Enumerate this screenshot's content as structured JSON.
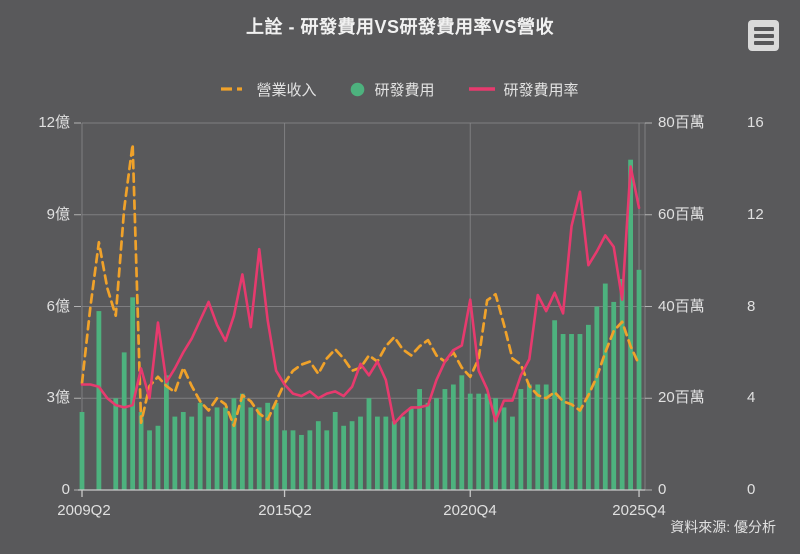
{
  "header": {
    "title": "上詮 - 研發費用VS研發費用率VS營收"
  },
  "legend": [
    {
      "label": "營業收入",
      "marker": "dashed-line",
      "color": "#F0A22A"
    },
    {
      "label": "研發費用",
      "marker": "circle",
      "color": "#4DB27E"
    },
    {
      "label": "研發費用率",
      "marker": "solid-line",
      "color": "#E73A6E"
    }
  ],
  "footer": {
    "source": "資料來源: 優分析"
  },
  "colors": {
    "background": "#59595B",
    "text": "#E3E3E3",
    "grid": "#8B8B8D",
    "axis_line": "#C9C9C9",
    "revenue": "#F0A22A",
    "rnd": "#4DB27E",
    "rate": "#E73A6E",
    "menu_button_bg": "#D9D9D9"
  },
  "chart_data": {
    "type": "combo (bar + 2 lines), quarterly",
    "title": "上詮 - 研發費用VS研發費用率VS營收",
    "x_tick_labels": [
      "2009Q2",
      "2015Q2",
      "2020Q4",
      "2025Q4"
    ],
    "x_tick_indices": [
      0,
      24,
      46,
      66
    ],
    "categories": [
      "2009Q2",
      "2009Q3",
      "2009Q4",
      "2010Q1",
      "2010Q2",
      "2010Q3",
      "2010Q4",
      "2011Q1",
      "2011Q2",
      "2011Q3",
      "2011Q4",
      "2012Q1",
      "2012Q2",
      "2012Q3",
      "2012Q4",
      "2013Q1",
      "2013Q2",
      "2013Q3",
      "2013Q4",
      "2014Q1",
      "2014Q2",
      "2014Q3",
      "2014Q4",
      "2015Q1",
      "2015Q2",
      "2015Q3",
      "2015Q4",
      "2016Q1",
      "2016Q2",
      "2016Q3",
      "2016Q4",
      "2017Q1",
      "2017Q2",
      "2017Q3",
      "2017Q4",
      "2018Q1",
      "2018Q2",
      "2018Q3",
      "2018Q4",
      "2019Q1",
      "2019Q2",
      "2019Q3",
      "2019Q4",
      "2020Q1",
      "2020Q2",
      "2020Q3",
      "2020Q4",
      "2021Q1",
      "2021Q2",
      "2021Q3",
      "2021Q4",
      "2022Q1",
      "2022Q2",
      "2022Q3",
      "2022Q4",
      "2023Q1",
      "2023Q2",
      "2023Q3",
      "2023Q4",
      "2024Q1",
      "2024Q2",
      "2024Q3",
      "2024Q4",
      "2025Q1",
      "2025Q2",
      "2025Q3",
      "2025Q4"
    ],
    "series": [
      {
        "name": "營業收入",
        "type": "line",
        "style": "dashed",
        "axis": "left",
        "unit": "億",
        "values": [
          3.5,
          6.0,
          8.1,
          6.6,
          5.7,
          9.2,
          11.3,
          2.2,
          3.4,
          3.7,
          3.4,
          3.2,
          4.0,
          3.4,
          2.9,
          2.6,
          3.0,
          2.8,
          2.1,
          3.1,
          2.9,
          2.5,
          2.3,
          2.9,
          3.5,
          3.9,
          4.1,
          4.2,
          3.8,
          4.3,
          4.6,
          4.3,
          3.9,
          4.0,
          4.4,
          4.2,
          4.7,
          5.0,
          4.6,
          4.4,
          4.7,
          4.9,
          4.4,
          4.2,
          4.5,
          4.0,
          3.7,
          4.3,
          6.2,
          6.4,
          5.4,
          4.3,
          4.1,
          3.4,
          3.1,
          3.0,
          3.2,
          2.9,
          2.8,
          2.6,
          3.1,
          3.7,
          4.5,
          5.2,
          5.5,
          4.7,
          4.1
        ]
      },
      {
        "name": "研發費用",
        "type": "bar",
        "axis": "right1",
        "unit": "百萬",
        "values": [
          17,
          0,
          39,
          0,
          20,
          30,
          42,
          17,
          13,
          14,
          25,
          16,
          17,
          16,
          19,
          16,
          18,
          18,
          20,
          21,
          18,
          18,
          19,
          19,
          13,
          13,
          12,
          13,
          15,
          13,
          17,
          14,
          15,
          16,
          20,
          16,
          16,
          15,
          16,
          18,
          22,
          19,
          20,
          22,
          23,
          25,
          21,
          21,
          21,
          20,
          18,
          16,
          22,
          23,
          23,
          23,
          37,
          34,
          34,
          34,
          36,
          40,
          45,
          41,
          46,
          72,
          48
        ]
      },
      {
        "name": "研發費用率",
        "type": "line",
        "style": "solid",
        "axis": "right2",
        "unit": "%",
        "values": [
          4.6,
          4.6,
          4.5,
          4.0,
          3.7,
          3.6,
          3.7,
          5.3,
          4.0,
          7.3,
          4.7,
          5.3,
          6.0,
          6.6,
          7.4,
          8.2,
          7.2,
          6.5,
          7.6,
          9.4,
          7.1,
          10.5,
          7.4,
          5.2,
          4.6,
          4.2,
          4.1,
          4.3,
          4.0,
          4.2,
          4.3,
          4.1,
          4.5,
          5.5,
          5.0,
          5.6,
          4.8,
          2.9,
          3.3,
          3.6,
          3.6,
          3.7,
          4.8,
          5.6,
          6.1,
          6.3,
          8.3,
          5.2,
          4.4,
          3.0,
          3.9,
          3.9,
          5.0,
          5.7,
          8.5,
          7.8,
          8.6,
          7.7,
          11.5,
          13.0,
          9.8,
          10.4,
          11.1,
          10.6,
          8.3,
          14.1,
          12.3
        ]
      }
    ],
    "axes": {
      "left": {
        "order": "top-to-bottom",
        "labels": [
          "12億",
          "9億",
          "6億",
          "3億",
          "0"
        ],
        "max": 12
      },
      "right1": {
        "order": "top-to-bottom",
        "labels": [
          "80百萬",
          "60百萬",
          "40百萬",
          "20百萬",
          "0"
        ],
        "max": 80
      },
      "right2": {
        "order": "top-to-bottom",
        "labels": [
          "16",
          "12",
          "8",
          "4",
          "0"
        ],
        "max": 16
      }
    },
    "grid": {
      "horizontal": true,
      "vertical_at_ticks": true
    },
    "legend_position": "top-center"
  }
}
